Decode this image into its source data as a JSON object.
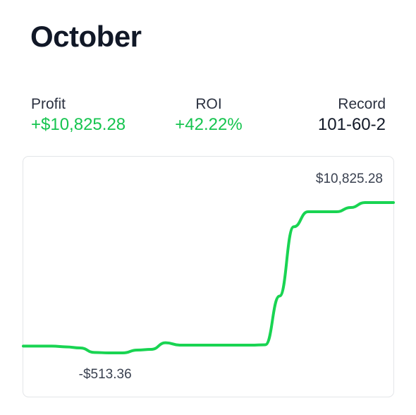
{
  "header": {
    "title": "October"
  },
  "stats": [
    {
      "label": "Profit",
      "value": "+$10,825.28"
    },
    {
      "label": "ROI",
      "value": "+42.22%"
    },
    {
      "label": "Record",
      "value": "101-60-2"
    }
  ],
  "chart_data": {
    "type": "line",
    "color": "#19d452",
    "values": [
      0,
      0,
      0,
      -60,
      -140,
      -480,
      -513.36,
      -513.36,
      -300,
      -247,
      250,
      72,
      72,
      72,
      72,
      72,
      72,
      100,
      3770,
      9000,
      10133,
      10133,
      10133,
      10450,
      10825.28,
      10825.28,
      10825.28
    ],
    "value_labels": [
      null,
      null,
      null,
      null,
      null,
      null,
      "-$513.36",
      null,
      null,
      null,
      null,
      null,
      null,
      null,
      null,
      null,
      null,
      null,
      null,
      null,
      null,
      null,
      null,
      null,
      "$10,825.28",
      null,
      null
    ]
  }
}
